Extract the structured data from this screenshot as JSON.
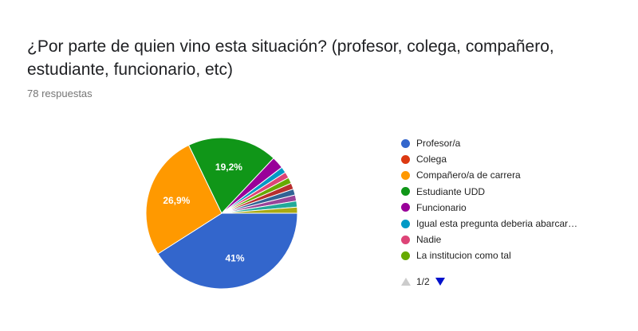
{
  "question": {
    "title": "¿Por parte de quien vino esta situación? (profesor, colega, compañero, estudiante, funcionario, etc)",
    "response_count": "78 respuestas"
  },
  "chart_data": {
    "type": "pie",
    "title": "¿Por parte de quien vino esta situación? (profesor, colega, compañero, estudiante, funcionario, etc)",
    "slices": [
      {
        "label": "Profesor/a",
        "value": 41,
        "display": "41%",
        "color": "#3366cc"
      },
      {
        "label": "Colega",
        "value": 0,
        "display": "",
        "color": "#dc3912"
      },
      {
        "label": "Compañero/a de carrera",
        "value": 26.9,
        "display": "26,9%",
        "color": "#ff9900"
      },
      {
        "label": "Estudiante UDD",
        "value": 19.2,
        "display": "19,2%",
        "color": "#109618"
      },
      {
        "label": "Funcionario",
        "value": 2.6,
        "display": "",
        "color": "#990099"
      },
      {
        "label": "Igual esta pregunta deberia abarcar…",
        "value": 1.3,
        "display": "",
        "color": "#0099c6"
      },
      {
        "label": "Nadie",
        "value": 1.3,
        "display": "",
        "color": "#dd4477"
      },
      {
        "label": "La institucion como tal",
        "value": 1.3,
        "display": "",
        "color": "#66aa00"
      },
      {
        "label": "",
        "value": 1.3,
        "display": "",
        "color": "#b82e2e"
      },
      {
        "label": "",
        "value": 1.3,
        "display": "",
        "color": "#316395"
      },
      {
        "label": "",
        "value": 1.3,
        "display": "",
        "color": "#994499"
      },
      {
        "label": "",
        "value": 1.3,
        "display": "",
        "color": "#22aa99"
      },
      {
        "label": "",
        "value": 1.3,
        "display": "",
        "color": "#aaaa11"
      }
    ],
    "legend_placement": "right"
  },
  "legend": {
    "items": [
      {
        "label": "Profesor/a",
        "color": "#3366cc"
      },
      {
        "label": "Colega",
        "color": "#dc3912"
      },
      {
        "label": "Compañero/a de carrera",
        "color": "#ff9900"
      },
      {
        "label": "Estudiante UDD",
        "color": "#109618"
      },
      {
        "label": "Funcionario",
        "color": "#990099"
      },
      {
        "label": "Igual esta pregunta deberia abarcar…",
        "color": "#0099c6"
      },
      {
        "label": "Nadie",
        "color": "#dd4477"
      },
      {
        "label": "La institucion como tal",
        "color": "#66aa00"
      }
    ],
    "pager": "1/2"
  }
}
